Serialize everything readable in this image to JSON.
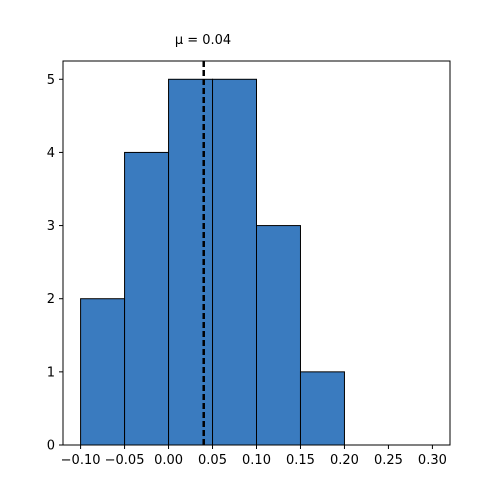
{
  "chart_data": {
    "type": "bar",
    "title": "μ = 0.04",
    "xlabel": "",
    "ylabel": "",
    "bins": [
      {
        "start": -0.1,
        "end": -0.05,
        "count": 2
      },
      {
        "start": -0.05,
        "end": 0.0,
        "count": 4
      },
      {
        "start": 0.0,
        "end": 0.05,
        "count": 5
      },
      {
        "start": 0.05,
        "end": 0.1,
        "count": 5
      },
      {
        "start": 0.1,
        "end": 0.15,
        "count": 3
      },
      {
        "start": 0.15,
        "end": 0.2,
        "count": 1
      }
    ],
    "mean_line": {
      "x": 0.04,
      "style": "dashed",
      "color": "#000000"
    },
    "xlim": [
      -0.12,
      0.32
    ],
    "ylim": [
      0,
      5.25
    ],
    "xticks": [
      -0.1,
      -0.05,
      0.0,
      0.05,
      0.1,
      0.15,
      0.2,
      0.25,
      0.3
    ],
    "xtick_labels": [
      "−0.10",
      "−0.05",
      "0.00",
      "0.05",
      "0.10",
      "0.15",
      "0.20",
      "0.25",
      "0.30"
    ],
    "yticks": [
      0,
      1,
      2,
      3,
      4,
      5
    ],
    "ytick_labels": [
      "0",
      "1",
      "2",
      "3",
      "4",
      "5"
    ],
    "bar_color": "#3a7bbf",
    "edge_color": "#000000",
    "grid": false,
    "legend": "none"
  }
}
